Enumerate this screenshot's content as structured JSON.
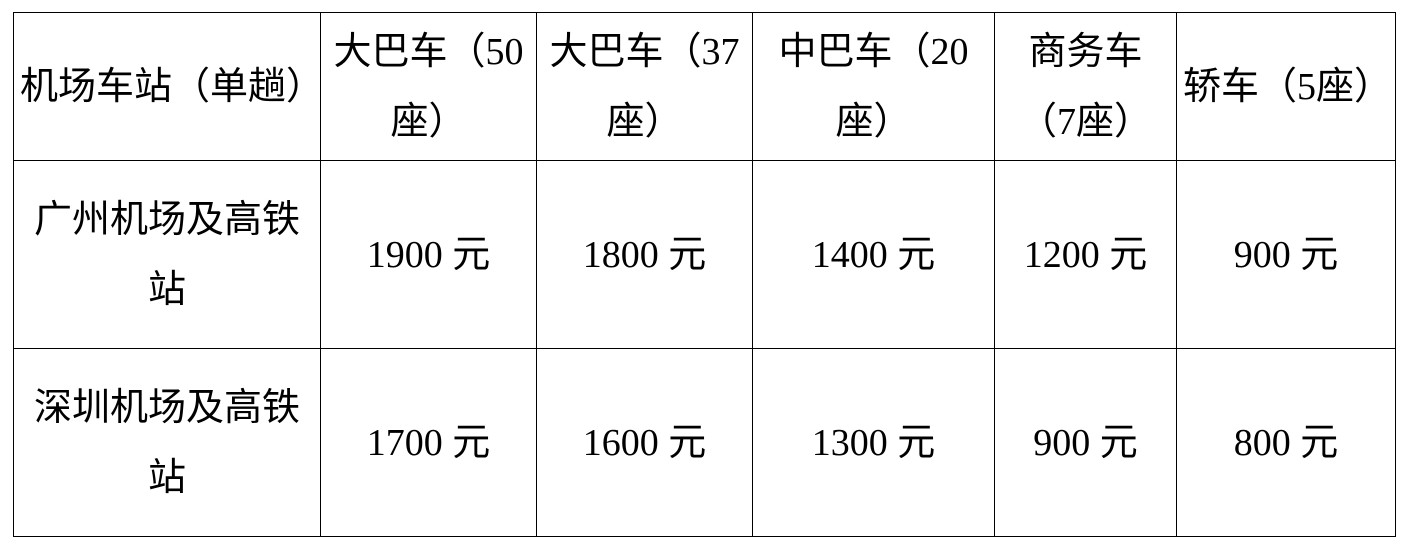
{
  "table": {
    "headers": [
      "机场车站（单趟）",
      "大巴车（50座）",
      "大巴车（37座）",
      "中巴车（20座）",
      "商务车（7座）",
      "轿车（5座）"
    ],
    "rows": [
      {
        "label": "广州机场及高铁站",
        "values": [
          "1900 元",
          "1800 元",
          "1400 元",
          "1200 元",
          "900 元"
        ]
      },
      {
        "label": "深圳机场及高铁站",
        "values": [
          "1700 元",
          "1600 元",
          "1300 元",
          "900 元",
          "800 元"
        ]
      }
    ]
  }
}
